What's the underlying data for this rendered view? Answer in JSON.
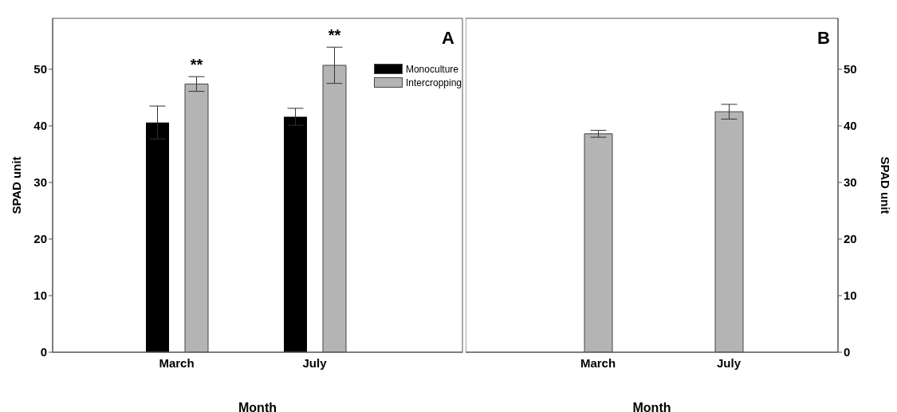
{
  "chart_data": [
    {
      "type": "bar",
      "categories": [
        "March",
        "July"
      ],
      "xlabel": "Month",
      "ylabel": "SPAD unit",
      "ylim": [
        0,
        59
      ],
      "yticks": [
        0,
        10,
        20,
        30,
        40,
        50
      ],
      "legend": "top right",
      "series": [
        {
          "name": "Monoculture",
          "color": "#000000",
          "values": [
            40.6,
            41.6
          ],
          "errors": [
            2.9,
            1.5
          ]
        },
        {
          "name": "Intercropping",
          "color": "#b4b4b4",
          "values": [
            47.4,
            50.7
          ],
          "errors": [
            1.3,
            3.2
          ]
        }
      ],
      "annotations": [
        "A",
        "**",
        "**"
      ]
    },
    {
      "type": "bar",
      "categories": [
        "March",
        "July"
      ],
      "xlabel": "Month",
      "ylabel": "SPAD unit",
      "ylim": [
        0,
        59
      ],
      "yticks": [
        0,
        10,
        20,
        30,
        40,
        50
      ],
      "series": [
        {
          "color": "#b4b4b4",
          "values": [
            38.6,
            42.5
          ],
          "errors": [
            0.6,
            1.3
          ]
        }
      ],
      "annotations": [
        "B"
      ]
    }
  ]
}
